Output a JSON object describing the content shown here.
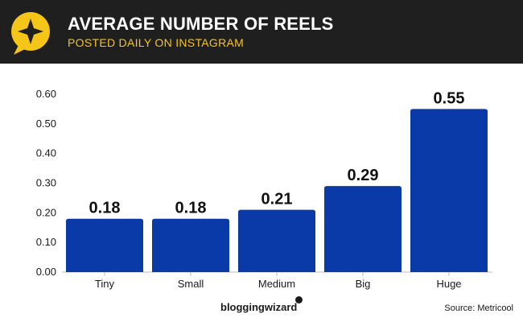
{
  "header": {
    "title": "AVERAGE NUMBER OF REELS",
    "subtitle": "POSTED DAILY ON INSTAGRAM",
    "logo_icon": "star-speech-bubble-icon"
  },
  "colors": {
    "header_bg": "#1f1f1f",
    "accent": "#f5c518",
    "bar": "#0a3aa8"
  },
  "chart_data": {
    "type": "bar",
    "categories": [
      "Tiny",
      "Small",
      "Medium",
      "Big",
      "Huge"
    ],
    "values": [
      0.18,
      0.18,
      0.21,
      0.29,
      0.55
    ],
    "data_labels": [
      "0.18",
      "0.18",
      "0.21",
      "0.29",
      "0.55"
    ],
    "yticks": [
      "0.00",
      "0.10",
      "0.20",
      "0.30",
      "0.40",
      "0.50",
      "0.60"
    ],
    "ylim": [
      0,
      0.6
    ],
    "grid": false,
    "legend": "none"
  },
  "footer": {
    "brand": "bloggingwizard",
    "source": "Source: Metricool"
  }
}
